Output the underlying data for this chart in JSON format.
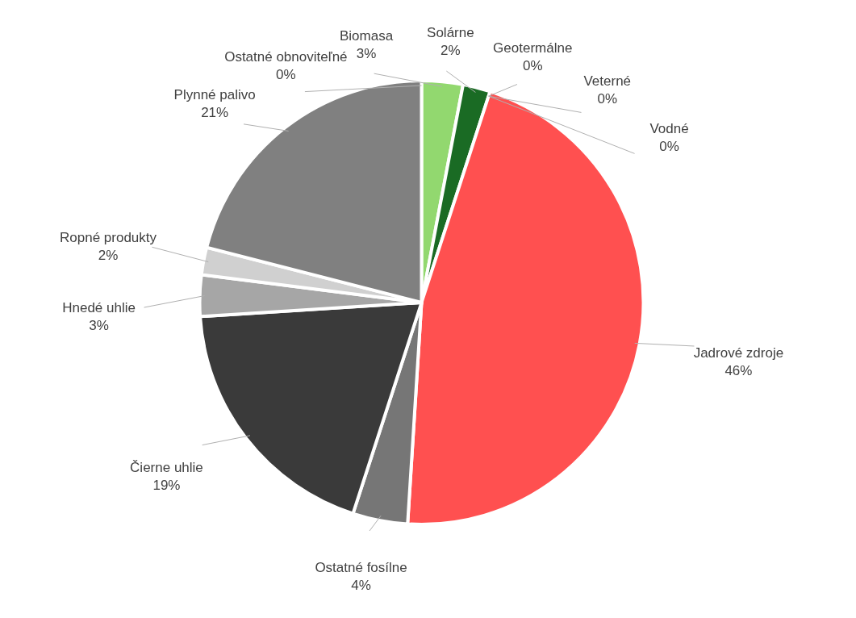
{
  "chart_data": {
    "type": "pie",
    "categories": [
      "Ostatné obnoviteľné",
      "Biomasa",
      "Solárne",
      "Geotermálne",
      "Veterné",
      "Vodné",
      "Jadrové zdroje",
      "Ostatné fosílne",
      "Čierne uhlie",
      "Hnedé uhlie",
      "Ropné produkty",
      "Plynné palivo"
    ],
    "values": [
      0,
      3,
      2,
      0,
      0,
      0,
      46,
      4,
      19,
      3,
      2,
      21
    ],
    "value_labels": [
      "0%",
      "3%",
      "2%",
      "0%",
      "0%",
      "0%",
      "46%",
      "4%",
      "19%",
      "3%",
      "2%",
      "21%"
    ],
    "colors": [
      "#2f5597",
      "#92d86f",
      "#1a6b24",
      "#c55a11",
      "#5b9bd5",
      "#4472c4",
      "#ff5050",
      "#767676",
      "#3a3a3a",
      "#a6a6a6",
      "#d0d0d0",
      "#808080"
    ]
  }
}
